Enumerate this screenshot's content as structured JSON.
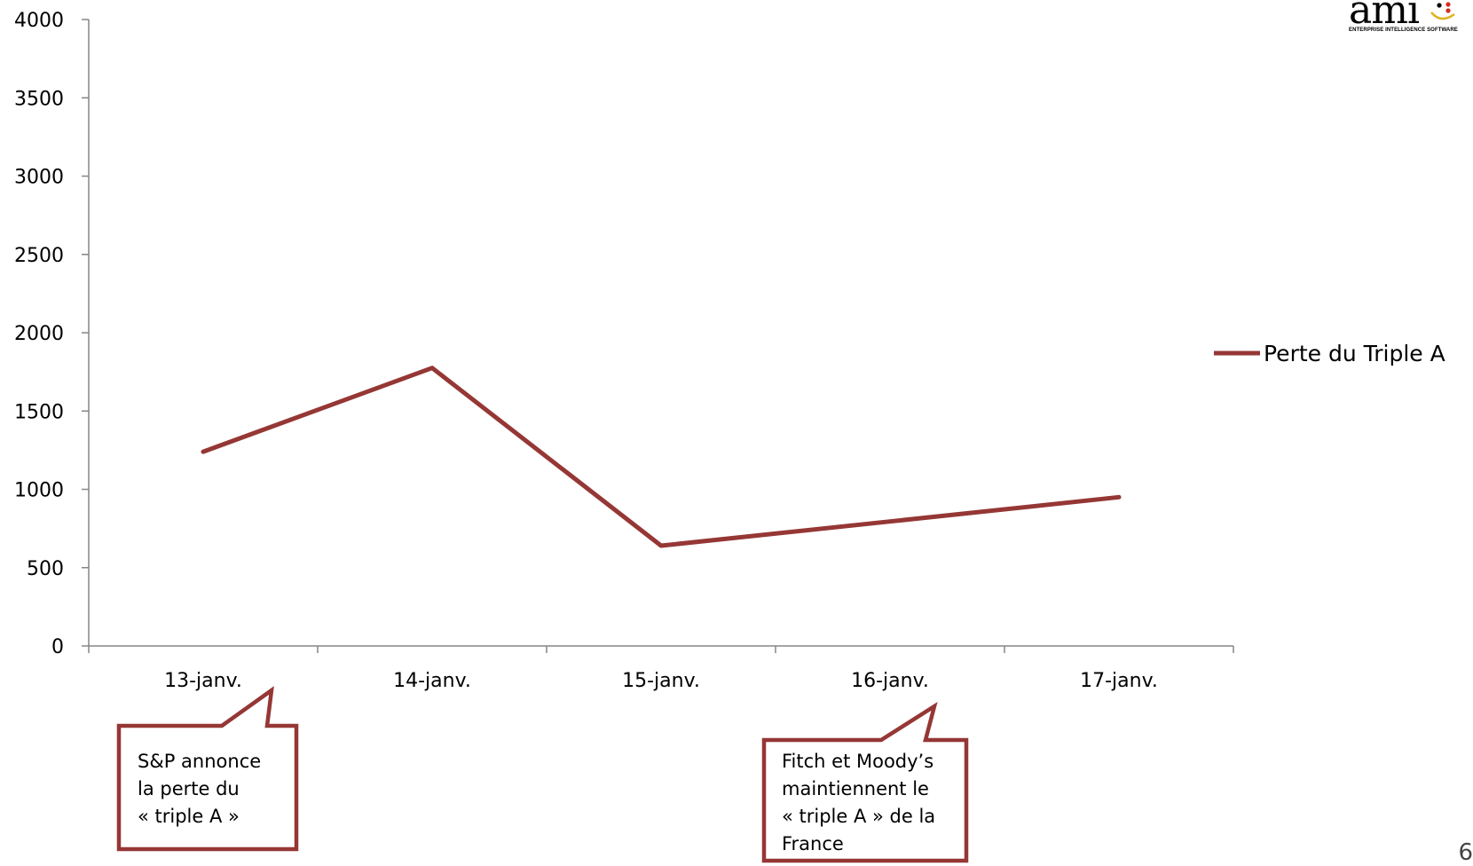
{
  "chart_data": {
    "type": "line",
    "categories": [
      "13-janv.",
      "14-janv.",
      "15-janv.",
      "16-janv.",
      "17-janv."
    ],
    "series": [
      {
        "name": "Perte du Triple A",
        "values": [
          1240,
          1775,
          640,
          795,
          950
        ],
        "color": "#953735"
      }
    ],
    "ylim": [
      0,
      4000
    ],
    "yticks": [
      0,
      500,
      1000,
      1500,
      2000,
      2500,
      3000,
      3500,
      4000
    ],
    "grid": false,
    "legend_position": "right"
  },
  "annotations": [
    {
      "lines": [
        "S&P annonce",
        "la perte du",
        "« triple A »"
      ],
      "category": "13-janv."
    },
    {
      "lines": [
        "Fitch et Moody’s",
        "maintiennent le",
        "« triple A » de la",
        "France"
      ],
      "category": "16-janv."
    }
  ],
  "logo": {
    "word": "ami",
    "tagline": "ENTERPRISE INTELLIGENCE SOFTWARE"
  },
  "page_number": "6"
}
